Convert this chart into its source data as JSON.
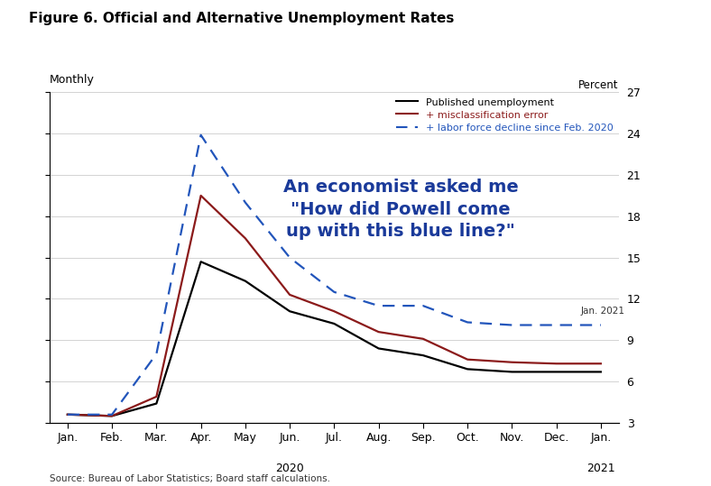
{
  "title": "Figure 6. Official and Alternative Unemployment Rates",
  "subtitle": "Monthly",
  "source": "Source: Bureau of Labor Statistics; Board staff calculations.",
  "ylabel_right": "Percent",
  "annotation_jan2021": "Jan. 2021",
  "annotation_text": "An economist asked me\n\"How did Powell come\nup with this blue line?\"",
  "x_labels": [
    "Jan.",
    "Feb.",
    "Mar.",
    "Apr.",
    "May",
    "Jun.",
    "Jul.",
    "Aug.",
    "Sep.",
    "Oct.",
    "Nov.",
    "Dec.",
    "Jan."
  ],
  "yticks": [
    3,
    6,
    9,
    12,
    15,
    18,
    21,
    24,
    27
  ],
  "ylim": [
    3,
    27
  ],
  "legend": [
    {
      "label": "Published unemployment",
      "color": "#000000",
      "linestyle": "solid"
    },
    {
      "label": "+ misclassification error",
      "color": "#8B1A1A",
      "linestyle": "solid"
    },
    {
      "label": "+ labor force decline since Feb. 2020",
      "color": "#2255BB",
      "linestyle": "dashed"
    }
  ],
  "black_line": [
    3.6,
    3.5,
    4.4,
    14.7,
    13.3,
    11.1,
    10.2,
    8.4,
    7.9,
    6.9,
    6.7,
    6.7,
    6.7
  ],
  "red_line": [
    3.6,
    3.5,
    4.9,
    19.5,
    16.4,
    12.3,
    11.1,
    9.6,
    9.1,
    7.6,
    7.4,
    7.3,
    7.3
  ],
  "blue_line": [
    3.6,
    3.6,
    8.0,
    23.9,
    19.0,
    15.0,
    12.5,
    11.5,
    11.5,
    10.3,
    10.1,
    10.1,
    10.1
  ],
  "background_color": "#FFFFFF",
  "grid_color": "#CCCCCC",
  "ann_color": "#1A3A9A"
}
